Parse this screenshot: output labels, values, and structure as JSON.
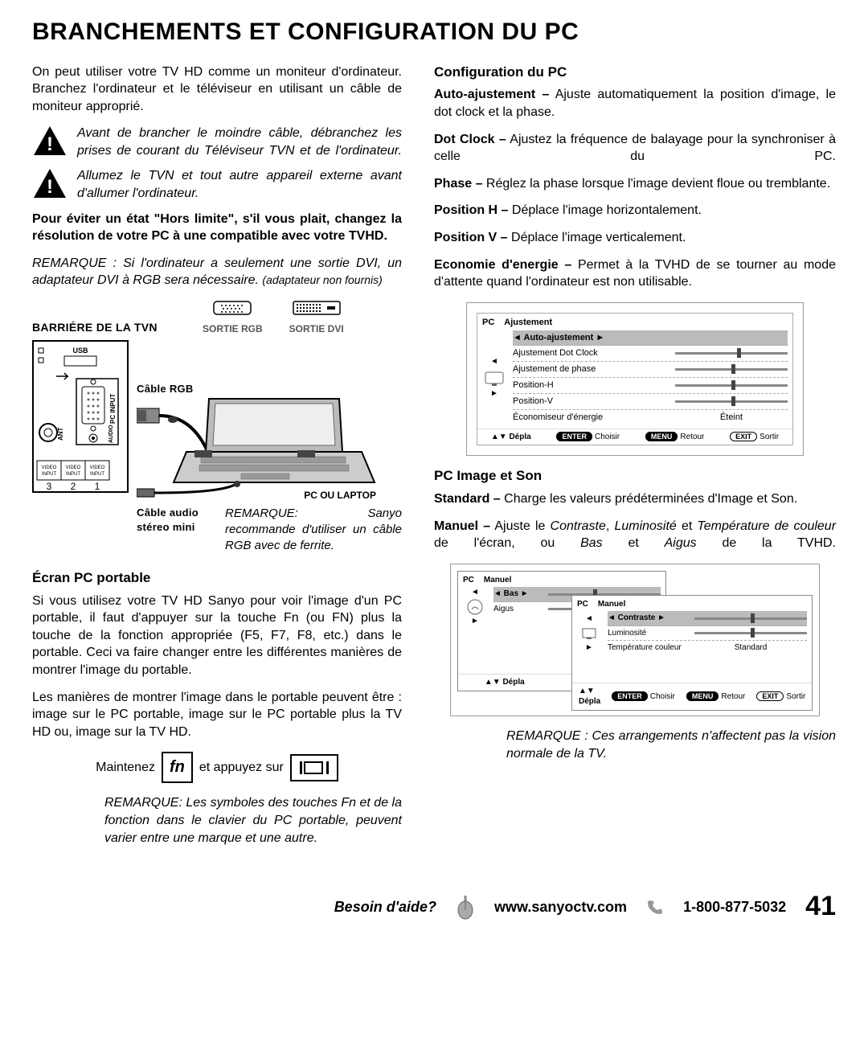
{
  "title": "BRANCHEMENTS ET CONFIGURATION DU PC",
  "intro": "On peut utiliser votre TV HD comme un moniteur d'ordinateur. Branchez l'ordinateur et le téléviseur en utilisant un câble de moniteur approprié.",
  "warn1": "Avant de brancher le moindre câble, débranchez les prises de courant du Téléviseur TVN et de l'ordinateur.",
  "warn2": "Allumez le TVN et tout autre appareil externe avant d'allumer l'ordinateur.",
  "res_notice": "Pour éviter un état \"Hors limite\", s'il vous plait, changez la résolution de votre PC à une compatible avec votre TVHD.",
  "dvi_note_a": "REMARQUE : Si l'ordinateur a seulement une sortie DVI, un adaptateur DVI à RGB sera nécessaire.",
  "dvi_note_b": "(adaptateur non fournis)",
  "diagram": {
    "back_label": "BARRIÉRE DE LA TVN",
    "sortie_rgb": "SORTIE RGB",
    "sortie_dvi": "SORTIE DVI",
    "usb": "USB",
    "pc_input": "PC INPUT",
    "audio": "AUDIO",
    "ant": "ANT",
    "video3": "VIDEO INPUT",
    "video2": "VIDEO INPUT",
    "video1": "VIDEO INPUT",
    "nums": [
      "3",
      "2",
      "1"
    ],
    "cable_rgb": "Câble RGB",
    "cable_audio": "Câble audio stéreo mini",
    "laptop": "PC OU LAPTOP",
    "ferrite": "REMARQUE: Sanyo recommande d'utiliser un câble RGB avec de ferrite."
  },
  "ecran": {
    "title": "Écran PC portable",
    "p1": "Si vous utilisez votre TV HD Sanyo pour voir l'image d'un PC portable, il faut d'appuyer sur la touche Fn (ou FN) plus la touche de la fonction appropriée (F5, F7, F8, etc.) dans le portable. Ceci va faire changer entre les différentes manières de montrer l'image du portable.",
    "p2": "Les manières de montrer l'image dans le portable peuvent être : image sur le PC portable, image sur le PC portable plus la TV HD ou, image sur la TV HD.",
    "maintenez": "Maintenez",
    "fn": "fn",
    "et_appuyez": "et appuyez sur",
    "note": "REMARQUE: Les symboles des touches Fn et de la fonction dans le clavier du PC portable, peuvent varier entre une marque et une autre."
  },
  "config": {
    "title": "Configuration du PC",
    "auto": {
      "label": "Auto-ajustement –",
      "text": " Ajuste automatiquement la position d'image, le dot clock et la phase."
    },
    "dot": {
      "label": "Dot Clock –",
      "text": " Ajustez la fréquence de balayage pour la synchroniser à celle du PC."
    },
    "phase": {
      "label": "Phase –",
      "text": " Réglez la phase lorsque l'image devient floue ou tremblante."
    },
    "posh": {
      "label": "Position H –",
      "text": " Déplace l'image horizontalement."
    },
    "posv": {
      "label": "Position V –",
      "text": " Déplace l'image verticalement."
    },
    "eco": {
      "label": "Economie d'energie –",
      "text": " Permet à la TVHD de se tourner au mode d'attente quand l'ordinateur est non utilisable."
    }
  },
  "osd1": {
    "pc": "PC",
    "title": "Ajustement",
    "rows": [
      {
        "label": "Auto-ajustement",
        "selected": true,
        "slider": false
      },
      {
        "label": "Ajustement Dot Clock",
        "slider": true,
        "thumb": 55
      },
      {
        "label": "Ajustement de phase",
        "slider": true,
        "thumb": 50
      },
      {
        "label": "Position-H",
        "slider": true,
        "thumb": 50
      },
      {
        "label": "Position-V",
        "slider": true,
        "thumb": 50
      },
      {
        "label": "Économiseur d'énergie",
        "value": "Éteint"
      }
    ],
    "footer": {
      "depla": "Dépla",
      "enter": "ENTER",
      "choisir": "Choisir",
      "menu": "MENU",
      "retour": "Retour",
      "exit": "EXIT",
      "sortir": "Sortir"
    }
  },
  "pcimg": {
    "title": "PC Image et Son",
    "std": {
      "label": "Standard –",
      "text": " Charge les valeurs prédéterminées d'Image et Son."
    },
    "man_a": "Manuel –",
    "man_b": " Ajuste le ",
    "man_c": "Contraste",
    "man_d": ", ",
    "man_e": "Luminosité",
    "man_f": " et ",
    "man_g": "Température de couleur",
    "man_h": " de l'écran, ou ",
    "man_i": "Bas",
    "man_j": " et ",
    "man_k": "Aigus",
    "man_l": " de la TVHD."
  },
  "osd2": {
    "pc": "PC",
    "panelA": {
      "title": "Manuel",
      "rows": [
        {
          "label": "Bas",
          "selected": true,
          "slider": true,
          "thumb": 40
        },
        {
          "label": "Aigus",
          "slider": true,
          "thumb": 40
        }
      ]
    },
    "panelB": {
      "title": "Manuel",
      "rows": [
        {
          "label": "Contraste",
          "selected": true,
          "slider": true,
          "thumb": 50
        },
        {
          "label": "Luminosité",
          "slider": true,
          "thumb": 50
        },
        {
          "label": "Température couleur",
          "value": "Standard"
        }
      ]
    },
    "footer": {
      "depla": "Dépla",
      "enter": "ENTER",
      "choisir": "Choisir",
      "menu": "MENU",
      "retour": "Retour",
      "exit": "EXIT",
      "sortir": "Sortir"
    }
  },
  "osd_note": "REMARQUE : Ces arrangements n'affectent pas la vision normale de la TV.",
  "footer": {
    "help": "Besoin d'aide?",
    "url": "www.sanyoctv.com",
    "phone": "1-800-877-5032",
    "page": "41"
  },
  "colors": {
    "text": "#000000",
    "bg": "#ffffff",
    "gray": "#888888",
    "selected": "#bbbbbb"
  }
}
